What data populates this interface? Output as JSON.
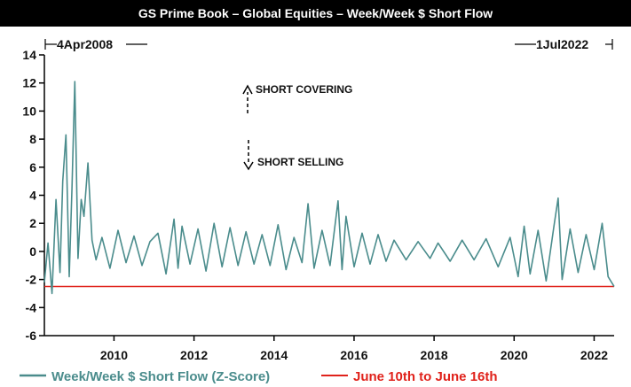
{
  "chart_data": {
    "type": "line",
    "title": "GS Prime Book – Global Equities – Week/Week $ Short Flow",
    "xlabel": "",
    "ylabel": "",
    "xlim": [
      2008.26,
      2022.5
    ],
    "ylim": [
      -6,
      14
    ],
    "yticks": [
      -6,
      -4,
      -2,
      0,
      2,
      4,
      6,
      8,
      10,
      12,
      14
    ],
    "ytick_labels": [
      "-6",
      "-4",
      "-2",
      "0",
      "2",
      "4",
      "6",
      "8",
      "10",
      "12",
      "14"
    ],
    "xticks": [
      2010,
      2012,
      2014,
      2016,
      2018,
      2020,
      2022
    ],
    "xtick_labels": [
      "2010",
      "2012",
      "2014",
      "2016",
      "2018",
      "2020",
      "2022"
    ],
    "range_start_label": "4Apr2008",
    "range_end_label": "1Jul2022",
    "annotations": {
      "up": "SHORT COVERING",
      "down": "SHORT SELLING"
    },
    "series": [
      {
        "name": "Week/Week $ Short Flow (Z-Score)",
        "color": "#4a8c8c",
        "x": [
          2008.26,
          2008.35,
          2008.45,
          2008.55,
          2008.65,
          2008.72,
          2008.8,
          2008.88,
          2008.95,
          2009.02,
          2009.1,
          2009.18,
          2009.25,
          2009.35,
          2009.45,
          2009.55,
          2009.7,
          2009.9,
          2010.1,
          2010.3,
          2010.5,
          2010.7,
          2010.9,
          2011.1,
          2011.3,
          2011.5,
          2011.6,
          2011.7,
          2011.9,
          2012.1,
          2012.3,
          2012.5,
          2012.7,
          2012.9,
          2013.1,
          2013.3,
          2013.5,
          2013.7,
          2013.9,
          2014.1,
          2014.3,
          2014.5,
          2014.7,
          2014.85,
          2015.0,
          2015.2,
          2015.4,
          2015.6,
          2015.7,
          2015.8,
          2016.0,
          2016.2,
          2016.4,
          2016.6,
          2016.8,
          2017.0,
          2017.3,
          2017.6,
          2017.9,
          2018.1,
          2018.4,
          2018.7,
          2019.0,
          2019.3,
          2019.6,
          2019.9,
          2020.1,
          2020.25,
          2020.4,
          2020.6,
          2020.8,
          2021.0,
          2021.1,
          2021.2,
          2021.4,
          2021.6,
          2021.8,
          2022.0,
          2022.2,
          2022.35,
          2022.5
        ],
        "y": [
          -2.2,
          0.6,
          -3.0,
          3.7,
          -1.5,
          5.0,
          8.3,
          -1.8,
          4.5,
          12.1,
          -0.5,
          3.7,
          2.5,
          6.3,
          0.8,
          -0.6,
          1.0,
          -1.2,
          1.5,
          -0.8,
          1.1,
          -1.0,
          0.7,
          1.3,
          -1.6,
          2.3,
          -1.2,
          1.8,
          -0.9,
          1.6,
          -1.4,
          2.0,
          -1.1,
          1.7,
          -1.0,
          1.4,
          -0.9,
          1.2,
          -1.0,
          1.9,
          -1.3,
          1.0,
          -0.8,
          3.4,
          -1.2,
          1.5,
          -1.0,
          3.6,
          -1.3,
          2.5,
          -1.1,
          1.3,
          -0.9,
          1.2,
          -0.7,
          0.8,
          -0.6,
          0.7,
          -0.5,
          0.6,
          -0.7,
          0.8,
          -0.6,
          0.9,
          -1.1,
          1.0,
          -1.8,
          1.8,
          -1.6,
          1.5,
          -2.1,
          1.9,
          3.8,
          -2.0,
          1.6,
          -1.5,
          1.2,
          -1.3,
          2.0,
          -1.8,
          -2.5
        ]
      },
      {
        "name": "June 10th to June 16th",
        "color": "#e0221b",
        "type": "hline",
        "y": -2.5
      }
    ],
    "legend": {
      "position": "bottom",
      "entries": [
        "Week/Week $ Short Flow (Z-Score)",
        "June 10th to June 16th"
      ]
    }
  }
}
